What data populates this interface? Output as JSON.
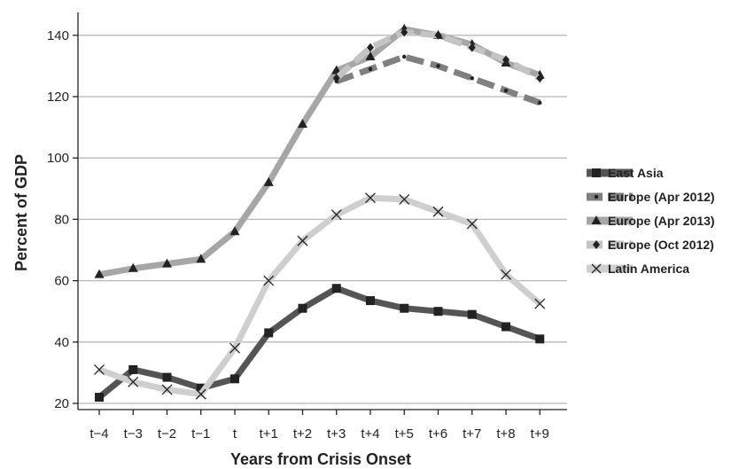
{
  "chart_data": {
    "type": "line",
    "title": "",
    "xlabel": "Years from Crisis Onset",
    "ylabel": "Percent of GDP",
    "categories": [
      "t−4",
      "t−3",
      "t−2",
      "t−1",
      "t",
      "t+1",
      "t+2",
      "t+3",
      "t+4",
      "t+5",
      "t+6",
      "t+7",
      "t+8",
      "t+9"
    ],
    "ylim": [
      20,
      145
    ],
    "yticks": [
      20,
      40,
      60,
      80,
      100,
      120,
      140
    ],
    "grid": true,
    "legend_position": "right",
    "series": [
      {
        "name": "East Asia",
        "color": "#555555",
        "marker": "square",
        "dashed": false,
        "values": [
          22,
          31,
          28.5,
          25,
          28,
          43,
          51,
          57.5,
          53.5,
          51,
          50,
          49,
          45,
          41
        ]
      },
      {
        "name": "Europe (Apr 2012)",
        "color": "#808080",
        "marker": "dot",
        "dashed": true,
        "values": [
          null,
          null,
          null,
          null,
          null,
          null,
          null,
          125,
          129,
          133,
          130,
          126,
          122,
          118
        ]
      },
      {
        "name": "Europe (Apr 2013)",
        "color": "#a6a6a6",
        "marker": "triangle",
        "dashed": false,
        "values": [
          62,
          64,
          65.5,
          67,
          76,
          92,
          111,
          128.5,
          133,
          142,
          140,
          137,
          131,
          127
        ]
      },
      {
        "name": "Europe (Oct 2012)",
        "color": "#c4c4c4",
        "marker": "diamond",
        "dashed": true,
        "values": [
          null,
          null,
          null,
          null,
          null,
          null,
          null,
          126,
          136,
          141,
          140,
          136,
          132,
          126
        ]
      },
      {
        "name": "Latin America",
        "color": "#cfcfcf",
        "marker": "x",
        "dashed": false,
        "values": [
          31,
          27,
          24.5,
          23,
          38,
          60,
          73,
          81.5,
          87,
          86.5,
          82.5,
          78.5,
          62,
          52.5
        ]
      }
    ]
  }
}
